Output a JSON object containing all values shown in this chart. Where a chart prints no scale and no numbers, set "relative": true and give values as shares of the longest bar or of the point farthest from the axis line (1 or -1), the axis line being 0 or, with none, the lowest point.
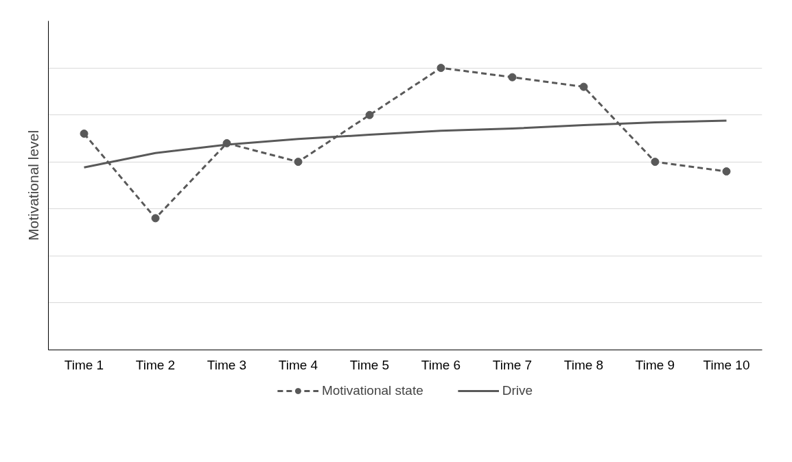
{
  "chart_data": {
    "type": "line",
    "relative": true,
    "ylabel": "Motivational level",
    "categories": [
      "Time 1",
      "Time 2",
      "Time 3",
      "Time 4",
      "Time 5",
      "Time 6",
      "Time 7",
      "Time 8",
      "Time 9",
      "Time 10"
    ],
    "series": [
      {
        "name": "Motivational state",
        "color": "#595959",
        "line_style": "dashed",
        "marker": "circle",
        "values": [
          0.767,
          0.467,
          0.733,
          0.667,
          0.833,
          1,
          0.967,
          0.933,
          0.667,
          0.633
        ]
      },
      {
        "name": "Drive",
        "color": "#595959",
        "line_style": "solid",
        "marker": "none",
        "values": [
          0.647,
          0.698,
          0.728,
          0.748,
          0.763,
          0.777,
          0.785,
          0.797,
          0.807,
          0.813
        ]
      }
    ],
    "grid": "y",
    "legend": "bottom"
  }
}
